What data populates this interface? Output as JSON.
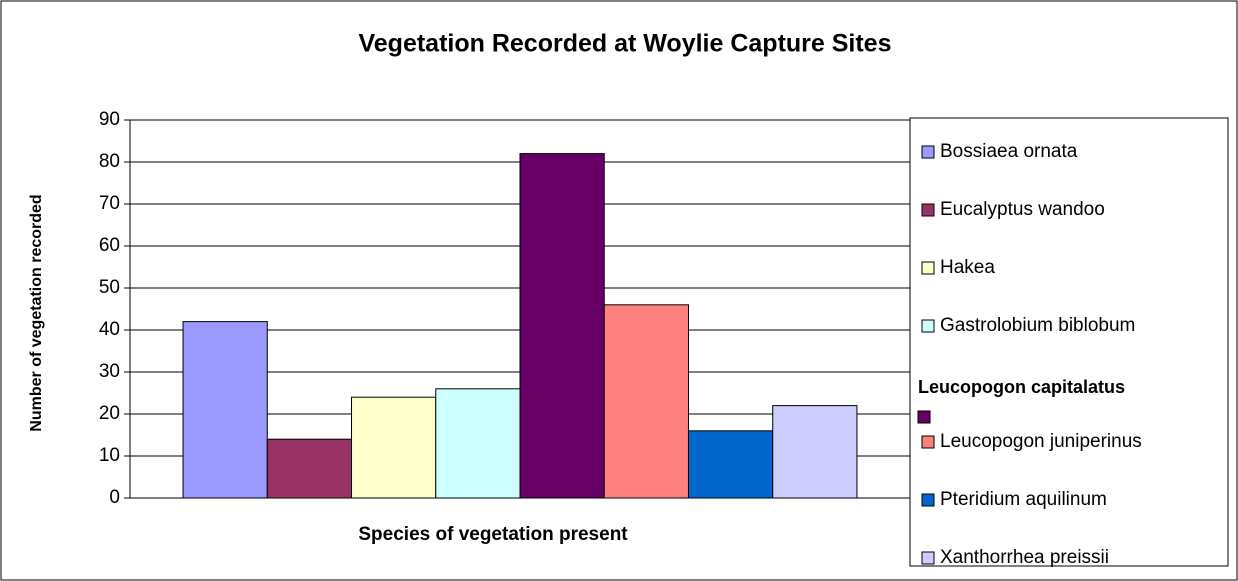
{
  "chart_data": {
    "type": "bar",
    "title": "Vegetation Recorded at Woylie Capture Sites",
    "x_label": "Species of vegetation present",
    "y_label": "Number of vegetation recorded",
    "categories": [
      null
    ],
    "series": [
      {
        "name": "Bossiaea ornata",
        "color": "#9999ff",
        "values": [
          42
        ]
      },
      {
        "name": "Eucalyptus wandoo",
        "color": "#993366",
        "values": [
          14
        ]
      },
      {
        "name": "Hakea",
        "color": "#ffffcc",
        "values": [
          24
        ]
      },
      {
        "name": "Gastrolobium biblobum",
        "color": "#ccffff",
        "values": [
          26
        ]
      },
      {
        "name": "Leucopogon capitalatus",
        "color": "#660066",
        "values": [
          82
        ]
      },
      {
        "name": "Leucopogon juniperinus",
        "color": "#ff8080",
        "values": [
          46
        ]
      },
      {
        "name": "Pteridium aquilinum",
        "color": "#0066cc",
        "values": [
          16
        ]
      },
      {
        "name": "Xanthorrhea preissii",
        "color": "#ccccff",
        "values": [
          22
        ]
      }
    ],
    "ylim": [
      0,
      90
    ],
    "yticks": [
      0,
      10,
      20,
      30,
      40,
      50,
      60,
      70,
      80,
      90
    ],
    "grid": true,
    "legend": "right"
  }
}
